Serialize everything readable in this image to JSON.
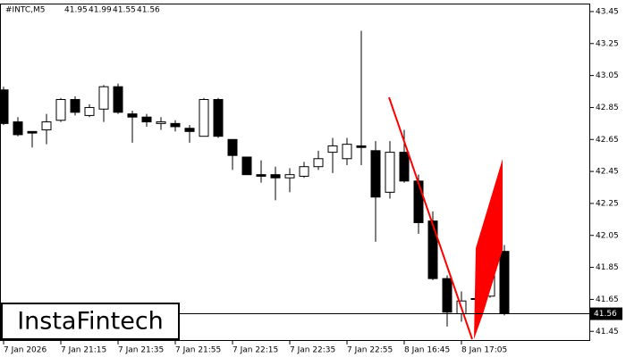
{
  "chart_data": {
    "type": "candlestick",
    "symbol": "#INTC,M5",
    "categories": [
      "7 Jan 2026",
      null,
      null,
      null,
      "7 Jan 21:15",
      null,
      null,
      null,
      "7 Jan 21:35",
      null,
      null,
      null,
      "7 Jan 21:55",
      null,
      null,
      null,
      "7 Jan 22:15",
      null,
      null,
      null,
      "7 Jan 22:35",
      null,
      null,
      null,
      "7 Jan 22:55",
      null,
      null,
      null,
      "8 Jan 16:45",
      null,
      null,
      null,
      "8 Jan 17:05",
      null,
      null,
      null
    ],
    "open": [
      42.96,
      42.76,
      42.7,
      42.71,
      42.77,
      42.9,
      42.8,
      42.84,
      42.98,
      42.81,
      42.79,
      42.75,
      42.75,
      42.72,
      42.67,
      42.9,
      42.65,
      42.54,
      42.43,
      42.43,
      42.41,
      42.42,
      42.48,
      42.57,
      42.53,
      42.61,
      42.58,
      42.32,
      42.57,
      42.39,
      42.14,
      41.78,
      41.56,
      41.65,
      41.67,
      41.95
    ],
    "high": [
      42.98,
      42.79,
      42.7,
      42.81,
      42.91,
      42.92,
      42.87,
      42.99,
      43.0,
      42.83,
      42.81,
      42.79,
      42.77,
      42.74,
      42.91,
      42.91,
      42.65,
      42.54,
      42.52,
      42.48,
      42.47,
      42.51,
      42.58,
      42.66,
      42.66,
      43.33,
      42.64,
      42.64,
      42.71,
      42.43,
      42.2,
      41.8,
      41.7,
      41.74,
      42.05,
      41.99
    ],
    "low": [
      42.74,
      42.67,
      42.6,
      42.62,
      42.76,
      42.8,
      42.79,
      42.76,
      42.81,
      42.63,
      42.73,
      42.71,
      42.7,
      42.63,
      42.67,
      42.66,
      42.46,
      42.43,
      42.38,
      42.27,
      42.32,
      42.41,
      42.46,
      42.44,
      42.49,
      42.49,
      42.01,
      42.28,
      42.38,
      42.06,
      41.77,
      41.48,
      41.51,
      41.48,
      41.66,
      41.55
    ],
    "close": [
      42.75,
      42.68,
      42.69,
      42.76,
      42.9,
      42.82,
      42.85,
      42.98,
      42.82,
      42.79,
      42.76,
      42.76,
      42.73,
      42.7,
      42.9,
      42.67,
      42.55,
      42.43,
      42.42,
      42.41,
      42.43,
      42.48,
      42.53,
      42.61,
      42.62,
      42.6,
      42.29,
      42.57,
      42.39,
      42.13,
      41.78,
      41.57,
      41.64,
      41.655,
      41.95,
      41.56
    ],
    "ylim": [
      41.39,
      43.5
    ],
    "yticks": [
      41.45,
      41.65,
      41.85,
      42.05,
      42.25,
      42.45,
      42.65,
      42.85,
      43.05,
      43.25,
      43.45
    ],
    "up_color": "#ffffff",
    "down_color": "#000000",
    "pattern_color": "#ff0000"
  },
  "logo": "InstaFintech"
}
